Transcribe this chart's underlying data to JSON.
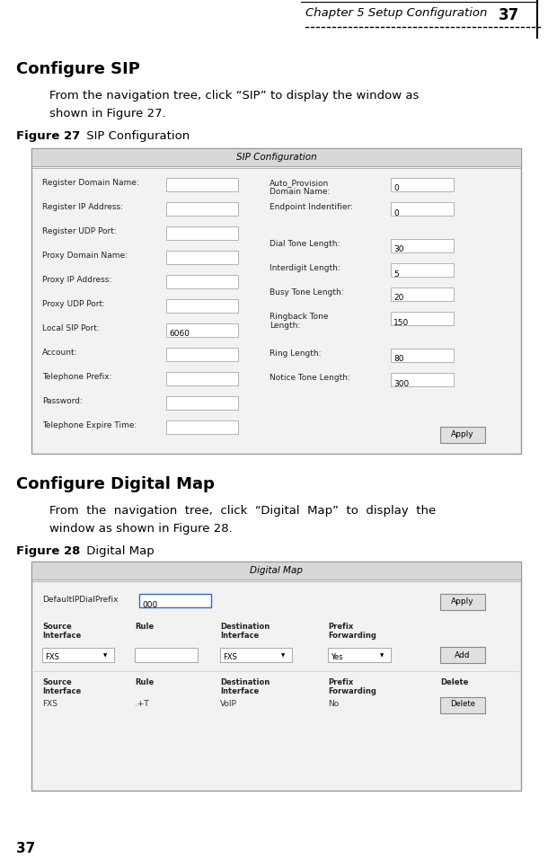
{
  "bg_color": "#ffffff",
  "header_text": "Chapter 5 Setup Configuration",
  "header_page": "37",
  "s1_title": "Configure SIP",
  "s1_body1": "From the navigation tree, click “SIP” to display the window as",
  "s1_body2": "shown in Figure 27.",
  "s1_fig_bold": "Figure 27",
  "s1_fig_normal": " SIP Configuration",
  "sip_title": "SIP Configuration",
  "sip_left_fields": [
    "Register Domain Name:",
    "Register IP Address:",
    "Register UDP Port:",
    "Proxy Domain Name:",
    "Proxy IP Address:",
    "Proxy UDP Port:",
    "Local SIP Port:",
    "Account:",
    "Telephone Prefix:",
    "Password:",
    "Telephone Expire Time:"
  ],
  "sip_left_values": [
    "",
    "",
    "",
    "",
    "",
    "",
    "6060",
    "",
    "",
    "",
    ""
  ],
  "sip_right_labels": [
    "Auto_Provision\nDomain Name:",
    "Endpoint Indentifier:",
    "Dial Tone Length:",
    "Interdigit Length:",
    "Busy Tone Length:",
    "Ringback Tone\nLength:",
    "Ring Length:",
    "Notice Tone Length:"
  ],
  "sip_right_values": [
    "0",
    "0",
    "30",
    "5",
    "20",
    "150",
    "80",
    "300"
  ],
  "s2_title": "Configure Digital Map",
  "s2_body1": "From  the  navigation  tree,  click  “Digital  Map”  to  display  the",
  "s2_body2": "window as shown in Figure 28.",
  "s2_fig_bold": "Figure 28",
  "s2_fig_normal": " Digital Map",
  "dm_title": "Digital Map",
  "footer_page": "37"
}
